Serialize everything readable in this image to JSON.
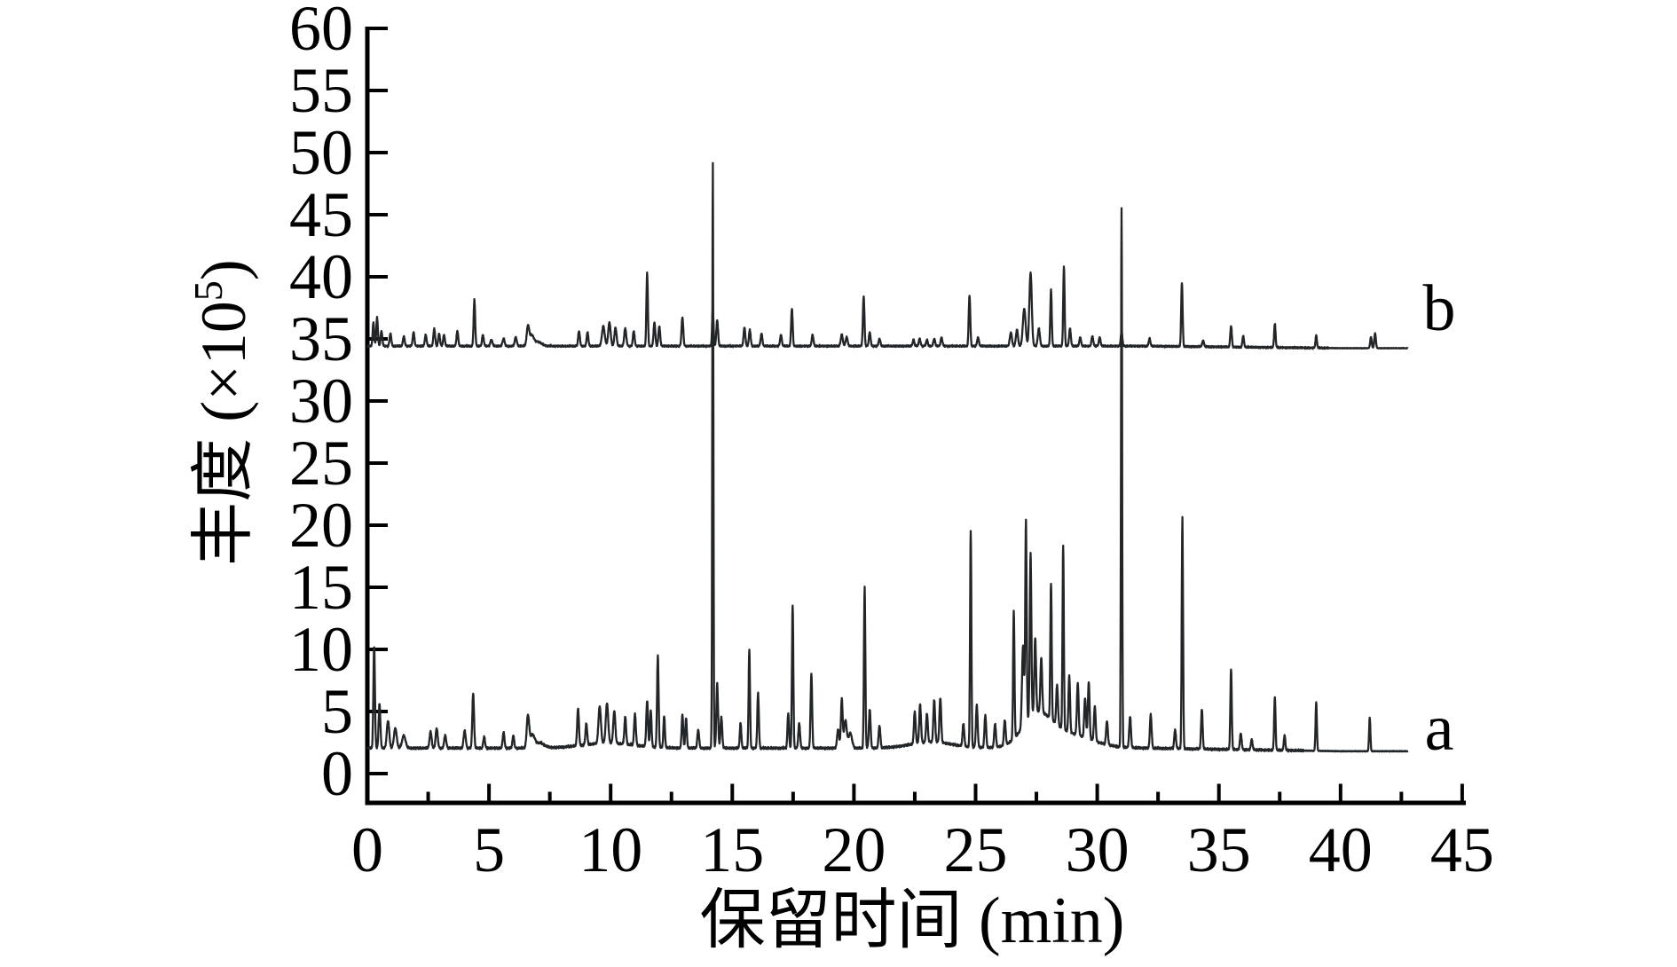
{
  "chart_data": {
    "type": "line",
    "title": "",
    "xlabel_cjk": "保留时间",
    "xlabel_unit": " (min)",
    "ylabel_cjk": "丰度",
    "ylabel_unit_prefix": " (×10",
    "ylabel_sup": "5",
    "ylabel_unit_suffix": ")",
    "xlim": [
      0,
      45
    ],
    "ylim": [
      0,
      60
    ],
    "x_major_ticks": [
      0,
      5,
      10,
      15,
      20,
      25,
      30,
      35,
      40,
      45
    ],
    "x_minor_step": 2.5,
    "y_ticks": [
      0,
      5,
      10,
      15,
      20,
      25,
      30,
      35,
      40,
      45,
      50,
      55,
      60
    ],
    "grid": false,
    "line_color": "#232629",
    "series": [
      {
        "name": "a",
        "label": "a",
        "baseline": 2.05,
        "t_end": 42.76,
        "noise_amp": 0.17,
        "calm_after": 38.5,
        "drift_to": 1.8,
        "peaks": [
          [
            0.28,
            8.2,
            0.045
          ],
          [
            0.5,
            3.6,
            0.05
          ],
          [
            0.85,
            2.2,
            0.07
          ],
          [
            1.15,
            1.6,
            0.08
          ],
          [
            1.5,
            1.0,
            0.1
          ],
          [
            2.6,
            1.3,
            0.06
          ],
          [
            2.85,
            1.6,
            0.06
          ],
          [
            3.2,
            1.0,
            0.06
          ],
          [
            4.0,
            1.4,
            0.06
          ],
          [
            4.35,
            4.4,
            0.05
          ],
          [
            4.8,
            0.9,
            0.05
          ],
          [
            5.6,
            1.3,
            0.05
          ],
          [
            6.0,
            1.0,
            0.05
          ],
          [
            6.6,
            2.5,
            0.07
          ],
          [
            6.78,
            1.0,
            0.14
          ],
          [
            7.1,
            0.4,
            0.25
          ],
          [
            8.66,
            3.0,
            0.05
          ],
          [
            9.0,
            1.7,
            0.05
          ],
          [
            9.55,
            3.0,
            0.07
          ],
          [
            9.85,
            3.2,
            0.07
          ],
          [
            10.15,
            2.6,
            0.06
          ],
          [
            10.6,
            2.2,
            0.05
          ],
          [
            11.0,
            2.5,
            0.05
          ],
          [
            11.5,
            3.7,
            0.05
          ],
          [
            11.65,
            2.9,
            0.045
          ],
          [
            11.94,
            7.3,
            0.045
          ],
          [
            12.2,
            2.5,
            0.045
          ],
          [
            12.95,
            2.7,
            0.045
          ],
          [
            13.1,
            2.4,
            0.045
          ],
          [
            13.6,
            1.5,
            0.05
          ],
          [
            14.2,
            47.1,
            0.032
          ],
          [
            14.38,
            5.2,
            0.05
          ],
          [
            14.55,
            2.5,
            0.05
          ],
          [
            15.34,
            2.0,
            0.045
          ],
          [
            15.7,
            7.9,
            0.04
          ],
          [
            16.06,
            4.4,
            0.045
          ],
          [
            17.3,
            2.8,
            0.045
          ],
          [
            17.48,
            11.5,
            0.04
          ],
          [
            17.75,
            2.0,
            0.05
          ],
          [
            18.25,
            6.0,
            0.045
          ],
          [
            19.35,
            1.5,
            0.06
          ],
          [
            19.5,
            3.9,
            0.05
          ],
          [
            19.65,
            2.2,
            0.08
          ],
          [
            19.85,
            1.2,
            0.1
          ],
          [
            20.44,
            13.0,
            0.04
          ],
          [
            20.65,
            3.1,
            0.05
          ],
          [
            21.05,
            1.8,
            0.05
          ],
          [
            22.5,
            2.6,
            0.05
          ],
          [
            22.72,
            3.1,
            0.05
          ],
          [
            23.0,
            2.3,
            0.05
          ],
          [
            23.3,
            3.4,
            0.05
          ],
          [
            23.55,
            3.6,
            0.05
          ],
          [
            24.5,
            1.8,
            0.05
          ],
          [
            24.8,
            17.4,
            0.038
          ],
          [
            25.05,
            3.4,
            0.05
          ],
          [
            25.4,
            2.6,
            0.05
          ],
          [
            25.8,
            1.9,
            0.05
          ],
          [
            26.2,
            2.0,
            0.05
          ],
          [
            26.57,
            10.3,
            0.04
          ],
          [
            26.95,
            6.5,
            0.06
          ],
          [
            27.07,
            16.2,
            0.04
          ],
          [
            27.26,
            13.2,
            0.045
          ],
          [
            27.45,
            6.0,
            0.05
          ],
          [
            27.7,
            4.4,
            0.05
          ],
          [
            28.1,
            10.9,
            0.04
          ],
          [
            28.35,
            3.2,
            0.05
          ],
          [
            28.6,
            14.8,
            0.038
          ],
          [
            28.85,
            4.6,
            0.045
          ],
          [
            29.2,
            4.2,
            0.05
          ],
          [
            29.5,
            3.2,
            0.05
          ],
          [
            29.65,
            4.6,
            0.05
          ],
          [
            29.9,
            2.8,
            0.05
          ],
          [
            30.4,
            1.9,
            0.05
          ],
          [
            31.0,
            43.4,
            0.032
          ],
          [
            31.35,
            2.5,
            0.05
          ],
          [
            32.2,
            2.7,
            0.05
          ],
          [
            33.2,
            1.5,
            0.05
          ],
          [
            33.5,
            18.6,
            0.038
          ],
          [
            34.3,
            3.2,
            0.045
          ],
          [
            35.5,
            6.5,
            0.04
          ],
          [
            35.9,
            1.3,
            0.05
          ],
          [
            36.35,
            0.8,
            0.05
          ],
          [
            37.3,
            4.3,
            0.04
          ],
          [
            37.7,
            1.2,
            0.045
          ],
          [
            39.0,
            3.9,
            0.038
          ],
          [
            41.2,
            2.7,
            0.038
          ],
          [
            27.5,
            2.2,
            0.8
          ],
          [
            28.6,
            1.2,
            1.5
          ],
          [
            23.2,
            0.5,
            1.2
          ],
          [
            9.9,
            0.4,
            1.5
          ]
        ]
      },
      {
        "name": "b",
        "label": "b",
        "baseline": 34.42,
        "t_end": 42.77,
        "noise_amp": 0.13,
        "calm_after": 39.5,
        "drift_to": 34.25,
        "peaks": [
          [
            0.25,
            1.9,
            0.045
          ],
          [
            0.4,
            2.3,
            0.045
          ],
          [
            0.58,
            1.2,
            0.05
          ],
          [
            0.95,
            1.0,
            0.05
          ],
          [
            1.5,
            0.8,
            0.05
          ],
          [
            1.9,
            1.1,
            0.05
          ],
          [
            2.4,
            0.9,
            0.05
          ],
          [
            2.75,
            1.4,
            0.05
          ],
          [
            2.95,
            1.0,
            0.05
          ],
          [
            3.15,
            0.9,
            0.05
          ],
          [
            3.7,
            1.2,
            0.05
          ],
          [
            4.4,
            3.7,
            0.045
          ],
          [
            4.75,
            0.9,
            0.05
          ],
          [
            5.1,
            0.5,
            0.06
          ],
          [
            5.6,
            0.6,
            0.06
          ],
          [
            6.1,
            0.7,
            0.06
          ],
          [
            6.6,
            1.5,
            0.07
          ],
          [
            6.75,
            0.8,
            0.12
          ],
          [
            7.0,
            0.35,
            0.22
          ],
          [
            8.7,
            1.2,
            0.05
          ],
          [
            9.05,
            1.1,
            0.05
          ],
          [
            9.7,
            1.6,
            0.08
          ],
          [
            9.95,
            1.9,
            0.07
          ],
          [
            10.2,
            1.5,
            0.06
          ],
          [
            10.6,
            1.4,
            0.06
          ],
          [
            10.95,
            1.2,
            0.05
          ],
          [
            11.5,
            5.9,
            0.042
          ],
          [
            11.8,
            1.9,
            0.05
          ],
          [
            12.0,
            1.6,
            0.05
          ],
          [
            12.95,
            2.3,
            0.05
          ],
          [
            14.2,
            3.1,
            0.04
          ],
          [
            14.38,
            2.1,
            0.05
          ],
          [
            15.5,
            1.5,
            0.05
          ],
          [
            15.72,
            1.3,
            0.05
          ],
          [
            16.2,
            1.0,
            0.05
          ],
          [
            17.0,
            0.9,
            0.05
          ],
          [
            17.45,
            3.0,
            0.045
          ],
          [
            18.3,
            0.9,
            0.05
          ],
          [
            19.5,
            0.9,
            0.06
          ],
          [
            19.7,
            0.7,
            0.06
          ],
          [
            20.4,
            4.0,
            0.045
          ],
          [
            20.65,
            1.1,
            0.05
          ],
          [
            21.05,
            0.6,
            0.05
          ],
          [
            22.45,
            0.5,
            0.05
          ],
          [
            22.7,
            0.6,
            0.05
          ],
          [
            23.0,
            0.5,
            0.05
          ],
          [
            23.3,
            0.6,
            0.05
          ],
          [
            23.6,
            0.7,
            0.05
          ],
          [
            24.75,
            4.1,
            0.045
          ],
          [
            25.1,
            0.7,
            0.05
          ],
          [
            26.45,
            1.1,
            0.06
          ],
          [
            26.7,
            1.3,
            0.06
          ],
          [
            27.0,
            3.0,
            0.08
          ],
          [
            27.26,
            5.9,
            0.07
          ],
          [
            27.6,
            1.4,
            0.06
          ],
          [
            28.1,
            4.5,
            0.042
          ],
          [
            28.63,
            6.4,
            0.04
          ],
          [
            28.88,
            1.4,
            0.05
          ],
          [
            29.3,
            0.7,
            0.05
          ],
          [
            29.8,
            0.8,
            0.05
          ],
          [
            30.1,
            0.7,
            0.05
          ],
          [
            31.0,
            1.2,
            0.045
          ],
          [
            32.15,
            0.6,
            0.05
          ],
          [
            33.48,
            5.1,
            0.042
          ],
          [
            34.35,
            0.5,
            0.05
          ],
          [
            35.5,
            1.7,
            0.045
          ],
          [
            36.0,
            0.9,
            0.045
          ],
          [
            37.3,
            1.9,
            0.042
          ],
          [
            39.0,
            1.0,
            0.042
          ],
          [
            41.25,
            0.9,
            0.045
          ],
          [
            41.42,
            1.2,
            0.045
          ]
        ]
      }
    ]
  }
}
